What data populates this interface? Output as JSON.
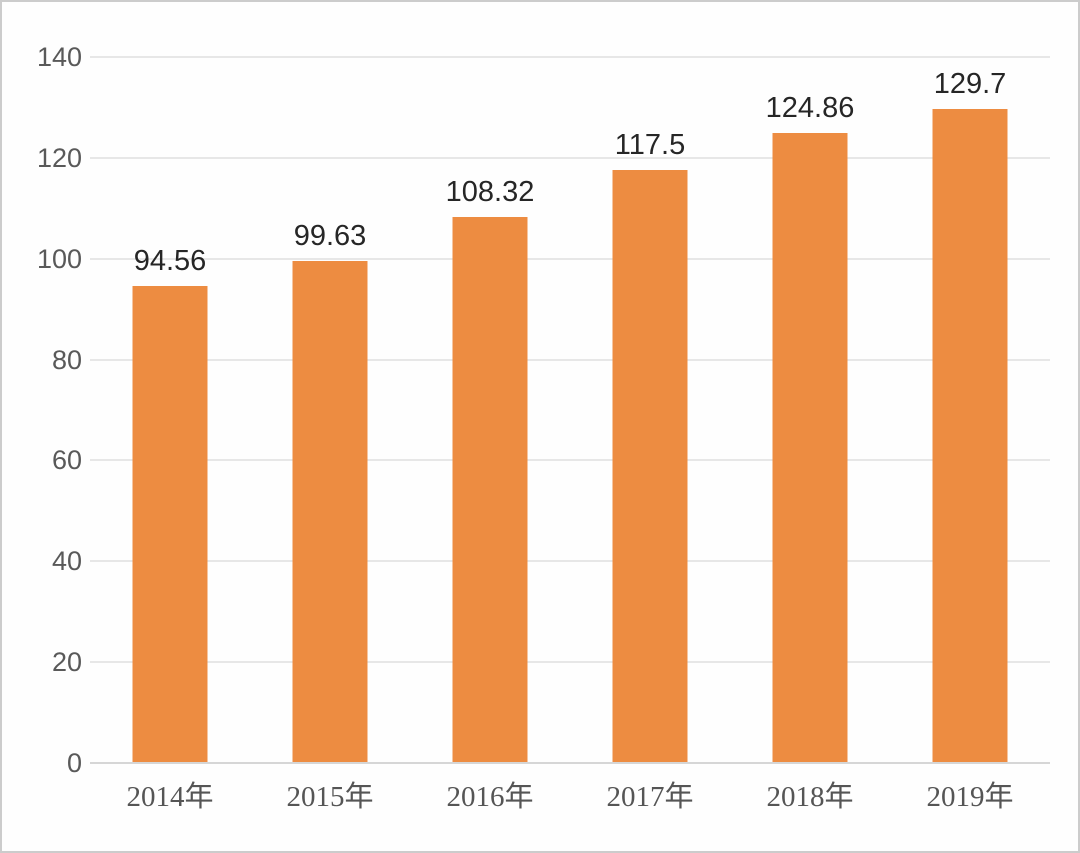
{
  "chart_data": {
    "type": "bar",
    "title": "",
    "xlabel": "",
    "ylabel": "",
    "categories": [
      "2014年",
      "2015年",
      "2016年",
      "2017年",
      "2018年",
      "2019年"
    ],
    "values": [
      94.56,
      99.63,
      108.32,
      117.5,
      124.86,
      129.7
    ],
    "data_labels": [
      "94.56",
      "99.63",
      "108.32",
      "117.5",
      "124.86",
      "129.7"
    ],
    "ylim": [
      0,
      140
    ],
    "yticks": [
      0,
      20,
      40,
      60,
      80,
      100,
      120,
      140
    ],
    "grid": true,
    "legend_position": "none",
    "colors": {
      "bar": "#ED8C41",
      "gridline": "#E7E7E7",
      "axis_line": "#D6D6D6",
      "ytick_label": "#595959",
      "xtick_label": "#555555",
      "data_label": "#262626",
      "background": "#FEFEFE",
      "frame_border": "#CCCCCC"
    }
  }
}
